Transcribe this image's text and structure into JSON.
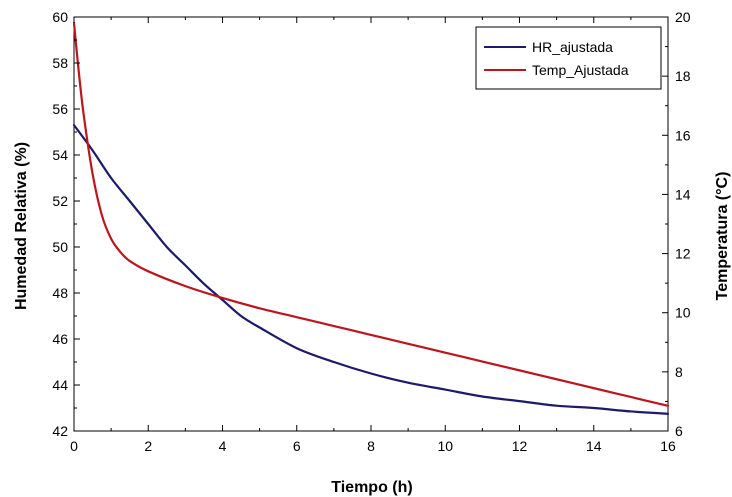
{
  "chart_data": {
    "type": "line",
    "xlabel": "Tiempo (h)",
    "ylabel_left": "Humedad Relativa (%)",
    "ylabel_right": "Temperatura (°C)",
    "xlim": [
      0,
      16
    ],
    "ylim_left": [
      42,
      60
    ],
    "ylim_right": [
      6,
      20
    ],
    "x_ticks": [
      "0",
      "2",
      "4",
      "6",
      "8",
      "10",
      "12",
      "14",
      "16"
    ],
    "y_left_ticks": [
      "42",
      "44",
      "46",
      "48",
      "50",
      "52",
      "54",
      "56",
      "58",
      "60"
    ],
    "y_right_ticks": [
      "6",
      "8",
      "10",
      "12",
      "14",
      "16",
      "18",
      "20"
    ],
    "grid": false,
    "legend_position": "top-right",
    "series": [
      {
        "name": "HR_ajustada",
        "axis": "left",
        "color": "#1a1a6e",
        "x": [
          0,
          0.5,
          1,
          1.5,
          2,
          2.5,
          3,
          3.5,
          4,
          4.5,
          5,
          6,
          7,
          8,
          9,
          10,
          11,
          12,
          13,
          14,
          15,
          16
        ],
        "values": [
          55.3,
          54.2,
          53.0,
          52.0,
          51.0,
          50.0,
          49.2,
          48.4,
          47.7,
          47.0,
          46.5,
          45.6,
          45.0,
          44.5,
          44.1,
          43.8,
          43.5,
          43.3,
          43.1,
          43.0,
          42.85,
          42.75
        ]
      },
      {
        "name": "Temp_Ajustada",
        "axis": "right",
        "color": "#c0141c",
        "x": [
          0,
          0.1,
          0.25,
          0.5,
          0.75,
          1,
          1.25,
          1.5,
          2,
          3,
          4,
          5,
          6,
          7,
          8,
          9,
          10,
          11,
          12,
          13,
          14,
          15,
          16
        ],
        "values": [
          19.8,
          18.5,
          16.8,
          14.7,
          13.3,
          12.5,
          12.05,
          11.75,
          11.4,
          10.9,
          10.5,
          10.15,
          9.85,
          9.55,
          9.25,
          8.95,
          8.65,
          8.35,
          8.05,
          7.75,
          7.45,
          7.15,
          6.85
        ]
      }
    ]
  }
}
